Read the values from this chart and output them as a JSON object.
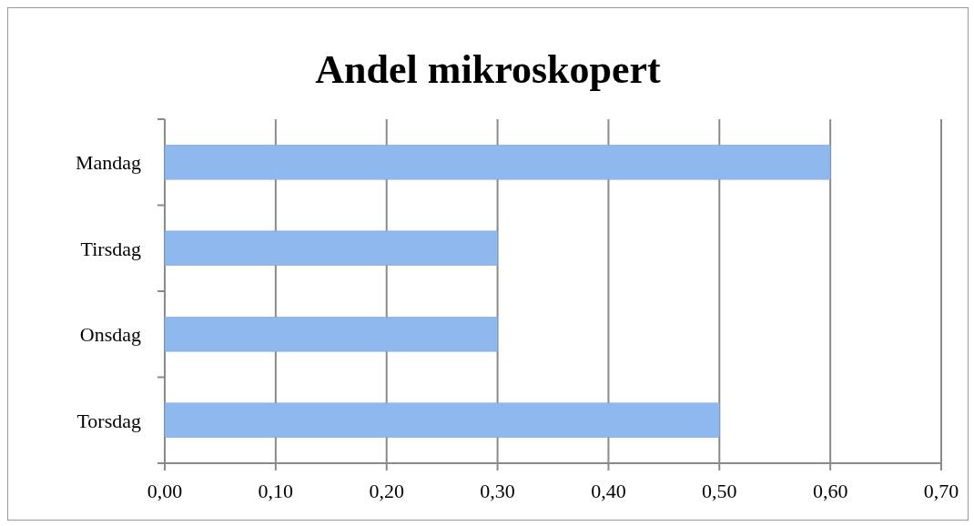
{
  "chart_data": {
    "type": "bar",
    "orientation": "horizontal",
    "title": "Andel mikroskopert",
    "categories": [
      "Mandag",
      "Tirsdag",
      "Onsdag",
      "Torsdag"
    ],
    "values": [
      0.6,
      0.3,
      0.3,
      0.5
    ],
    "color": "#8fb8ee",
    "xlim": [
      0,
      0.7
    ],
    "xticks": [
      {
        "value": 0,
        "label": "0,00"
      },
      {
        "value": 0.1,
        "label": "0,10"
      },
      {
        "value": 0.2,
        "label": "0,20"
      },
      {
        "value": 0.3,
        "label": "0,30"
      },
      {
        "value": 0.4,
        "label": "0,40"
      },
      {
        "value": 0.5,
        "label": "0,50"
      },
      {
        "value": 0.6,
        "label": "0,60"
      },
      {
        "value": 0.7,
        "label": "0,70"
      }
    ],
    "grid": "x"
  }
}
